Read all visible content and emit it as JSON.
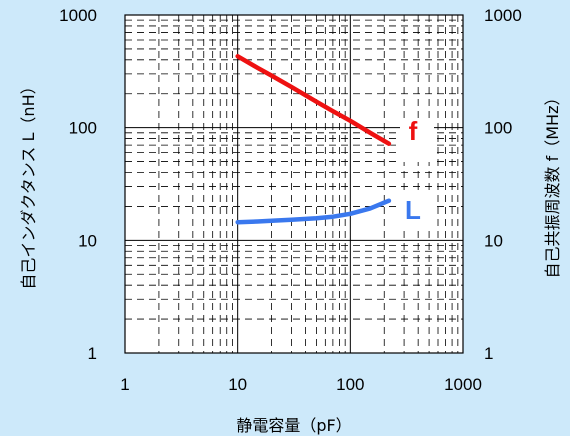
{
  "chart_data": {
    "type": "line",
    "xlabel": "静電容量（pF）",
    "ylabel_left": "自己インダクタンス L（nH）",
    "ylabel_right": "自己共振周波数 f（MHz）",
    "xscale": "log",
    "yscale": "log",
    "xlim": [
      1,
      1000
    ],
    "ylim": [
      1,
      1000
    ],
    "grid": true,
    "x_ticks": [
      "1",
      "10",
      "100",
      "1000"
    ],
    "y_ticks_left": [
      "1",
      "10",
      "100",
      "1000"
    ],
    "y_ticks_right": [
      "1",
      "10",
      "100",
      "1000"
    ],
    "series": [
      {
        "name": "f",
        "color": "#ee1111",
        "axis": "right",
        "x": [
          10,
          15,
          20,
          30,
          50,
          70,
          100,
          150,
          220
        ],
        "y": [
          430,
          340,
          290,
          230,
          170,
          140,
          115,
          90,
          72
        ]
      },
      {
        "name": "L",
        "color": "#3a78ee",
        "axis": "left",
        "x": [
          10,
          15,
          20,
          30,
          50,
          70,
          100,
          150,
          220
        ],
        "y": [
          14.5,
          14.7,
          14.9,
          15.2,
          15.7,
          16.2,
          17.2,
          19.2,
          22.5
        ]
      }
    ]
  }
}
